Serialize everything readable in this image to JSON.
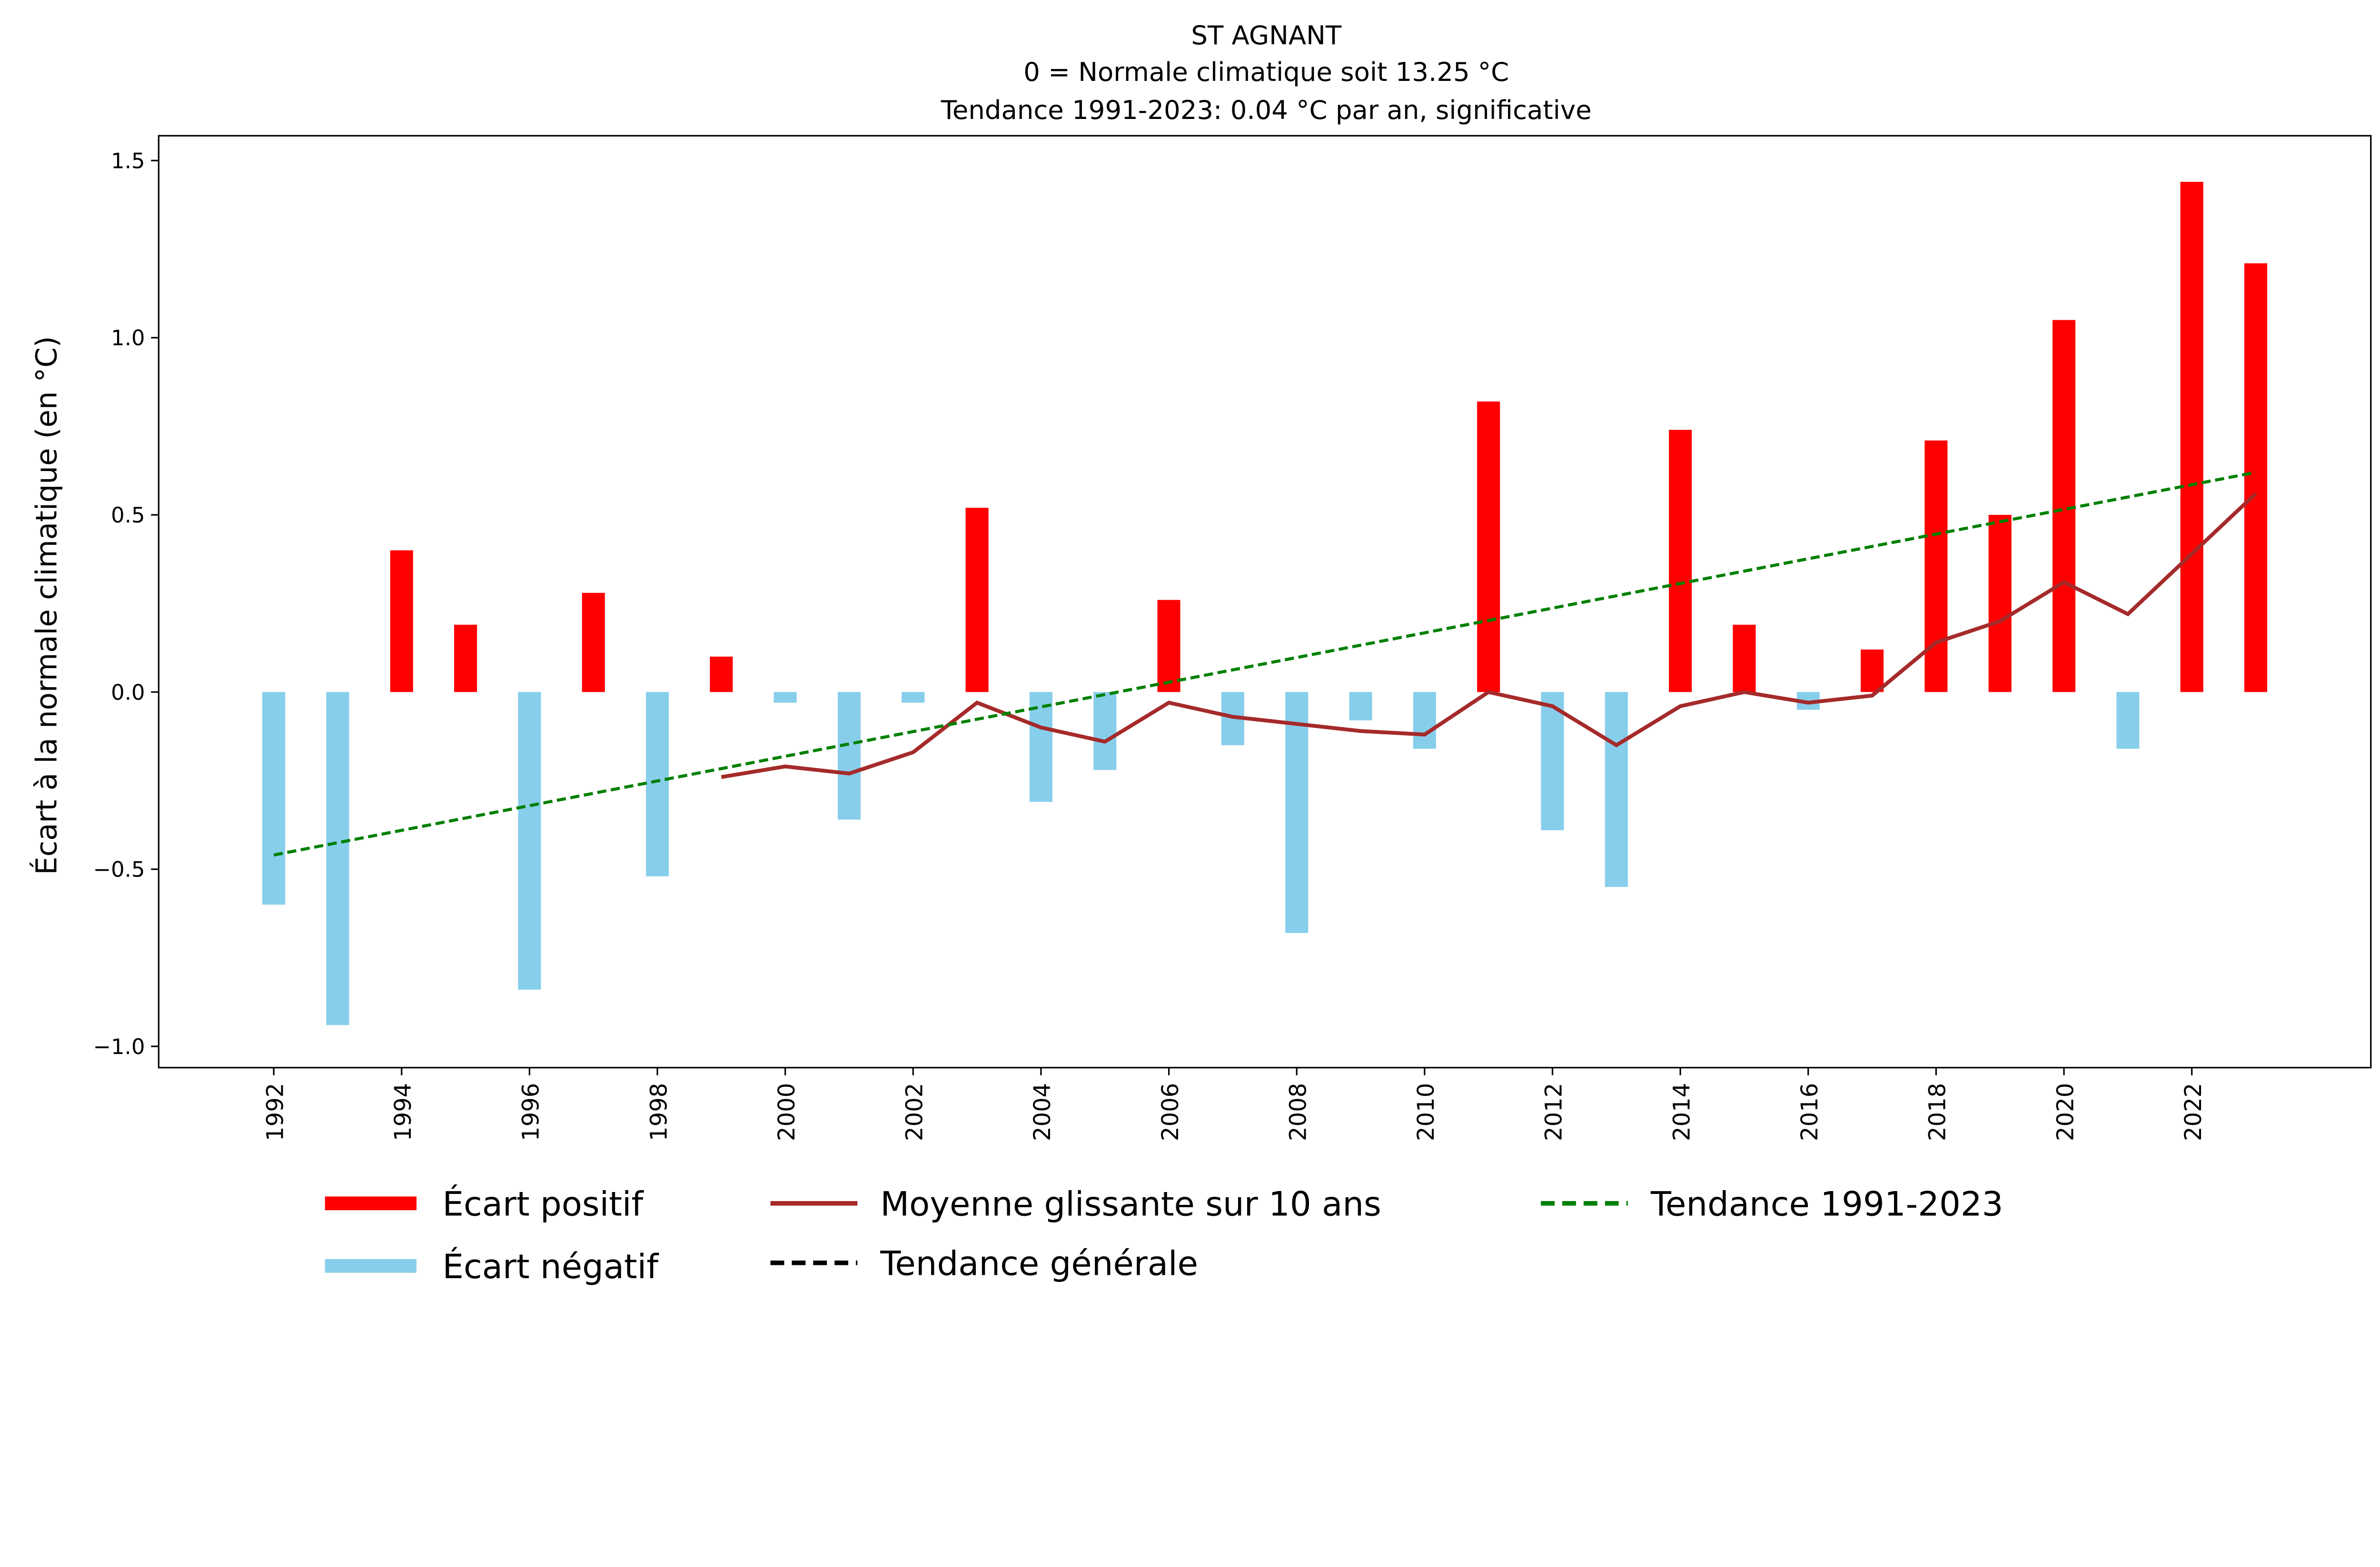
{
  "chart_data": {
    "type": "bar",
    "title": "ST AGNANT",
    "subtitle1": "0 = Normale climatique soit 13.25 °C",
    "subtitle2": "Tendance 1991-2023: 0.04 °C par an, significative",
    "xlabel": "",
    "ylabel": "Écart à la normale climatique (en °C)",
    "ylim": [
      -1.06,
      1.57
    ],
    "yticks": [
      -1.0,
      -0.5,
      0.0,
      0.5,
      1.0,
      1.5
    ],
    "ytick_labels": [
      "−1.0",
      "−0.5",
      "0.0",
      "0.5",
      "1.0",
      "1.5"
    ],
    "xlim": [
      1990.2,
      2024.8
    ],
    "xticks": [
      1992,
      1994,
      1996,
      1998,
      2000,
      2002,
      2004,
      2006,
      2008,
      2010,
      2012,
      2014,
      2016,
      2018,
      2020,
      2022
    ],
    "xtick_labels": [
      "1992",
      "1994",
      "1996",
      "1998",
      "2000",
      "2002",
      "2004",
      "2006",
      "2008",
      "2010",
      "2012",
      "2014",
      "2016",
      "2018",
      "2020",
      "2022"
    ],
    "years": [
      1992,
      1993,
      1994,
      1995,
      1996,
      1997,
      1998,
      1999,
      2000,
      2001,
      2002,
      2003,
      2004,
      2005,
      2006,
      2007,
      2008,
      2009,
      2010,
      2011,
      2012,
      2013,
      2014,
      2015,
      2016,
      2017,
      2018,
      2019,
      2020,
      2021,
      2022,
      2023
    ],
    "values": [
      -0.6,
      -0.94,
      0.4,
      0.19,
      -0.84,
      0.28,
      -0.52,
      0.1,
      -0.03,
      -0.36,
      -0.03,
      0.52,
      -0.31,
      -0.22,
      0.26,
      -0.15,
      -0.68,
      -0.08,
      -0.16,
      0.82,
      -0.39,
      -0.55,
      0.74,
      0.19,
      -0.05,
      0.12,
      0.71,
      0.5,
      1.05,
      -0.16,
      1.44,
      1.21
    ],
    "moving_average": {
      "years": [
        1999,
        2000,
        2001,
        2002,
        2003,
        2004,
        2005,
        2006,
        2007,
        2008,
        2009,
        2010,
        2011,
        2012,
        2013,
        2014,
        2015,
        2016,
        2017,
        2018,
        2019,
        2020,
        2021,
        2022,
        2023
      ],
      "values": [
        -0.24,
        -0.21,
        -0.23,
        -0.17,
        -0.03,
        -0.1,
        -0.14,
        -0.03,
        -0.07,
        -0.09,
        -0.11,
        -0.12,
        0.0,
        -0.04,
        -0.15,
        -0.04,
        0.0,
        -0.03,
        -0.01,
        0.14,
        0.2,
        0.31,
        0.22,
        0.39,
        0.56
      ]
    },
    "trend": {
      "x": [
        1992,
        2023
      ],
      "y": [
        -0.46,
        0.62
      ]
    },
    "colors": {
      "positive": "#ff0000",
      "negative": "#87ceeb",
      "moving": "#a52a2a",
      "trend": "#008000",
      "general": "#000000"
    },
    "legend": {
      "placement": "bottom",
      "positive": "Écart positif",
      "negative": "Écart négatif",
      "moving": "Moyenne glissante sur 10 ans",
      "general": "Tendance générale",
      "trend": "Tendance 1991-2023"
    }
  }
}
